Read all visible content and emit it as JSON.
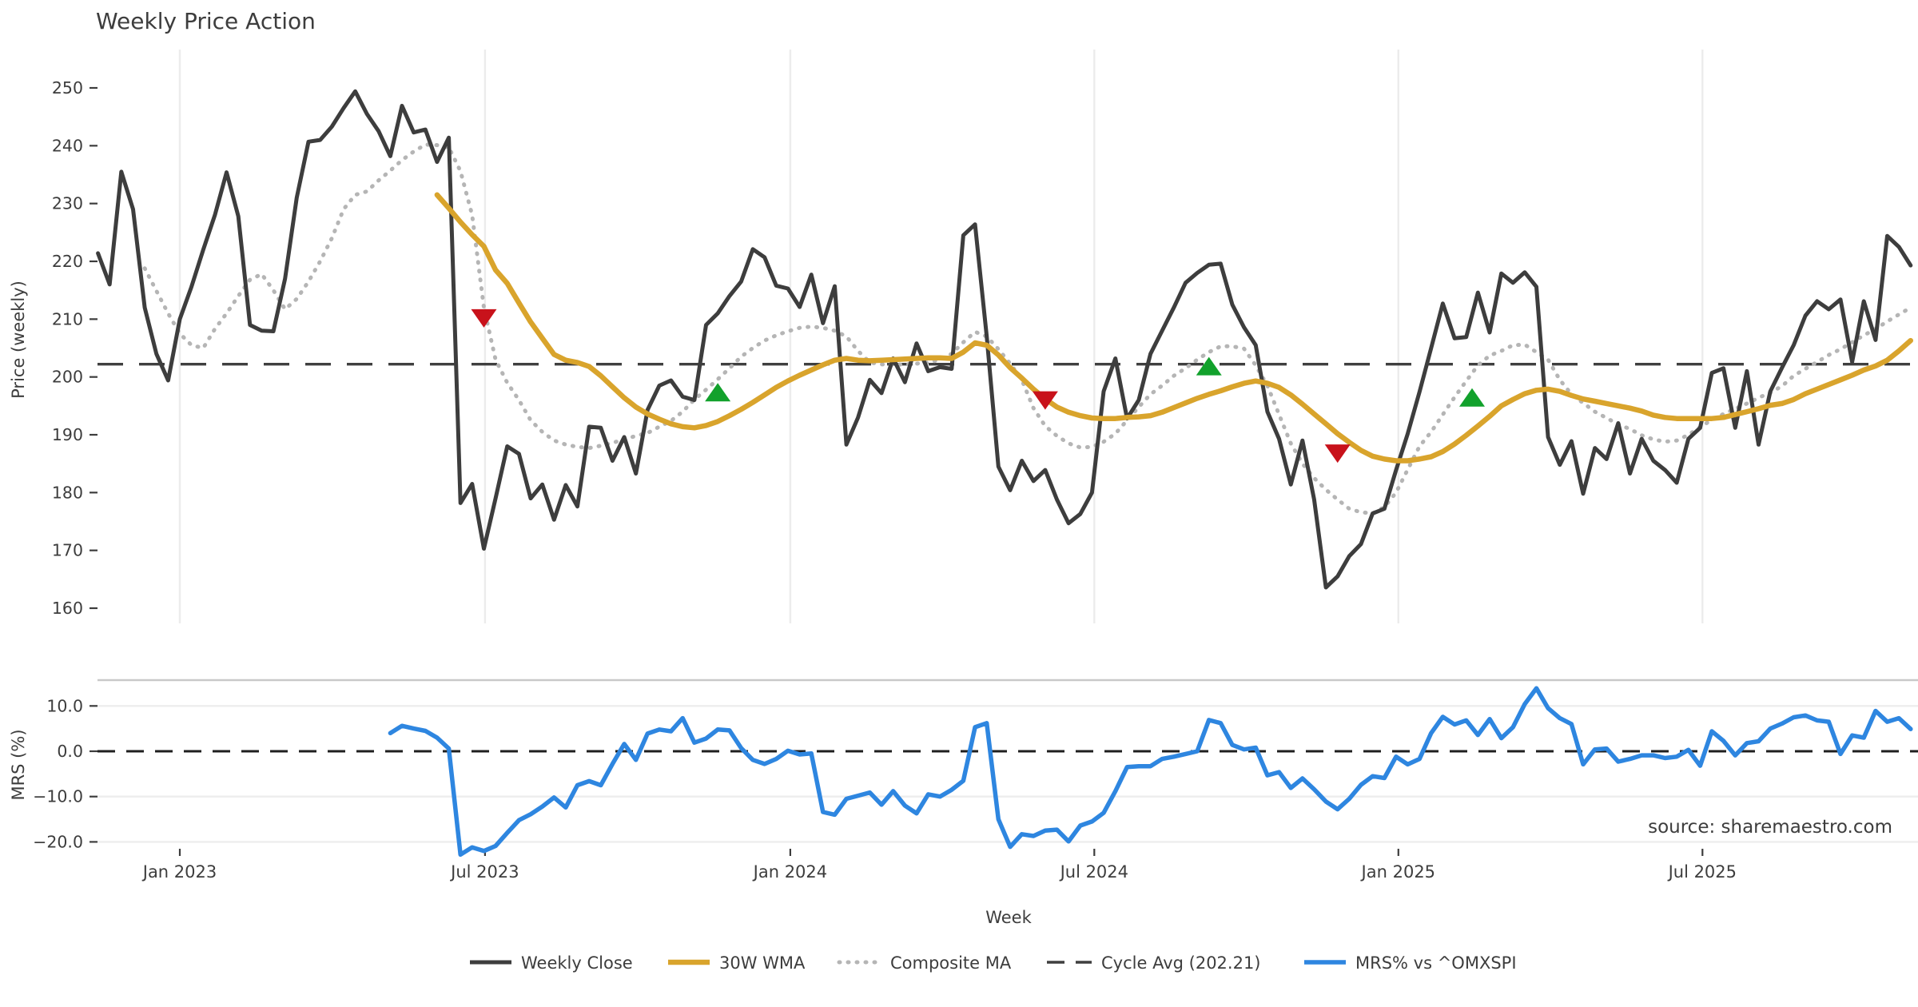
{
  "title": "Weekly Price Action",
  "source_note": "source: sharemaestro.com",
  "colors": {
    "weekly_close": "#3d3d3d",
    "wma": "#D9A42C",
    "composite": "#b5b5b5",
    "cycle_avg": "#3f3f3f",
    "mrs": "#2E86E0",
    "marker_down": "#C8121B",
    "marker_up": "#12A12C",
    "gridline": "#ececec",
    "panel_border": "#c9c9c9",
    "tick_text": "#3d3d3d",
    "source_text": "#a0a0a0"
  },
  "legend": {
    "items": [
      {
        "label": "Weekly Close",
        "style": "solid",
        "color": "#3d3d3d"
      },
      {
        "label": "30W WMA",
        "style": "solid",
        "color": "#D9A42C"
      },
      {
        "label": "Composite MA",
        "style": "dotted",
        "color": "#b5b5b5"
      },
      {
        "label": "Cycle Avg (202.21)",
        "style": "dashed",
        "color": "#3f3f3f"
      },
      {
        "label": "MRS% vs ^OMXSPI",
        "style": "solid",
        "color": "#2E86E0"
      }
    ]
  },
  "chart_data": [
    {
      "type": "line",
      "panel": "price",
      "ylabel": "Price (weekly)",
      "xlabel": "Week",
      "x_unit": "week index; 0 = Jan 2023 tick, one point per week",
      "ylim": [
        157,
        256.5
      ],
      "grid": "vertical-only",
      "cycle_avg_value": 202.21,
      "xticks": [
        {
          "pos": 0,
          "label": "Jan 2023"
        },
        {
          "pos": 26.1,
          "label": "Jul 2023"
        },
        {
          "pos": 52.2,
          "label": "Jan 2024"
        },
        {
          "pos": 78.2,
          "label": "Jul 2024"
        },
        {
          "pos": 104.2,
          "label": "Jan 2025"
        },
        {
          "pos": 130.2,
          "label": "Jul 2025"
        }
      ],
      "yticks": [
        {
          "value": 250,
          "label": "250"
        },
        {
          "value": 240,
          "label": "240"
        },
        {
          "value": 230,
          "label": "230"
        },
        {
          "value": 220,
          "label": "220"
        },
        {
          "value": 210,
          "label": "210"
        },
        {
          "value": 200,
          "label": "200"
        },
        {
          "value": 190,
          "label": "190"
        },
        {
          "value": 180,
          "label": "180"
        },
        {
          "value": 170,
          "label": "170"
        },
        {
          "value": 160,
          "label": "160"
        }
      ],
      "series": [
        {
          "name": "Weekly Close",
          "start_week": -7,
          "values": [
            221.4,
            216.0,
            235.5,
            229.0,
            212.0,
            204.0,
            199.4,
            210.0,
            215.6,
            222.0,
            228.0,
            235.4,
            227.8,
            209.0,
            208.0,
            207.9,
            217.0,
            231.0,
            240.7,
            241.0,
            243.3,
            246.5,
            249.4,
            245.5,
            242.5,
            238.2,
            246.9,
            242.3,
            242.8,
            237.2,
            241.4,
            178.2,
            181.5,
            170.3,
            179.0,
            188.0,
            186.7,
            179.0,
            181.4,
            175.3,
            181.3,
            177.6,
            191.4,
            191.2,
            185.5,
            189.6,
            183.3,
            194.3,
            198.5,
            199.4,
            196.6,
            196.0,
            209.0,
            211.0,
            214.0,
            216.5,
            222.1,
            220.7,
            215.8,
            215.3,
            212.1,
            217.7,
            209.3,
            215.7,
            188.3,
            193.0,
            199.5,
            197.2,
            203.2,
            199.1,
            205.8,
            201.0,
            201.7,
            201.4,
            224.5,
            226.4,
            207.0,
            184.5,
            180.4,
            185.5,
            182.0,
            183.9,
            178.8,
            174.7,
            176.3,
            180.0,
            197.5,
            203.2,
            192.8,
            196.0,
            204.0,
            208.0,
            212.0,
            216.3,
            218.0,
            219.4,
            219.6,
            212.5,
            208.6,
            205.5,
            194.0,
            189.3,
            181.4,
            189.0,
            178.8,
            163.6,
            165.5,
            169.0,
            171.1,
            176.4,
            177.2,
            183.9,
            190.2,
            197.4,
            205.0,
            212.7,
            206.7,
            206.9,
            214.6,
            207.7,
            217.9,
            216.3,
            218.1,
            215.6,
            189.6,
            184.8,
            188.9,
            179.8,
            187.7,
            185.8,
            192.0,
            183.3,
            189.3,
            185.5,
            183.9,
            181.7,
            189.3,
            191.2,
            200.7,
            201.5,
            191.2,
            201.0,
            188.3,
            197.5,
            201.6,
            205.5,
            210.6,
            213.1,
            211.7,
            213.4,
            202.6,
            213.1,
            206.4,
            224.4,
            222.5,
            219.3
          ]
        },
        {
          "name": "30W WMA",
          "start_week": 22,
          "values": [
            231.5,
            229.2,
            226.8,
            224.6,
            222.6,
            218.5,
            216.2,
            212.8,
            209.5,
            206.7,
            203.9,
            202.9,
            202.5,
            201.8,
            200.2,
            198.3,
            196.4,
            194.8,
            193.6,
            192.7,
            191.9,
            191.4,
            191.2,
            191.6,
            192.3,
            193.3,
            194.4,
            195.6,
            196.9,
            198.2,
            199.3,
            200.3,
            201.2,
            202.1,
            202.9,
            203.2,
            202.9,
            202.8,
            202.9,
            203.0,
            203.1,
            203.2,
            203.3,
            203.3,
            203.2,
            204.3,
            205.9,
            205.5,
            203.8,
            201.6,
            199.8,
            197.9,
            196.2,
            194.8,
            193.9,
            193.3,
            192.9,
            192.8,
            192.8,
            193.0,
            193.1,
            193.3,
            193.9,
            194.7,
            195.5,
            196.3,
            197.0,
            197.6,
            198.3,
            198.9,
            199.3,
            198.9,
            198.2,
            196.9,
            195.3,
            193.6,
            191.9,
            190.2,
            188.7,
            187.3,
            186.3,
            185.8,
            185.5,
            185.5,
            185.8,
            186.2,
            187.1,
            188.4,
            189.9,
            191.5,
            193.2,
            195.0,
            196.1,
            197.1,
            197.7,
            197.9,
            197.5,
            196.8,
            196.2,
            195.8,
            195.4,
            195.0,
            194.6,
            194.1,
            193.4,
            193.0,
            192.8,
            192.8,
            192.8,
            192.8,
            193.0,
            193.5,
            194.0,
            194.5,
            195.1,
            195.4,
            196.1,
            197.1,
            197.9,
            198.7,
            199.5,
            200.3,
            201.2,
            201.9,
            202.9,
            204.5,
            206.3
          ]
        },
        {
          "name": "Composite MA",
          "start_week": -3,
          "values": [
            218.8,
            214.9,
            211.0,
            207.5,
            205.5,
            205.0,
            208.3,
            211.0,
            214.0,
            216.8,
            217.8,
            215.0,
            211.7,
            213.5,
            216.5,
            220.0,
            224.0,
            229.0,
            231.5,
            232.1,
            234.0,
            235.7,
            237.5,
            239.0,
            240.2,
            240.1,
            239.7,
            235.6,
            228.0,
            212.0,
            203.0,
            199.0,
            196.0,
            192.5,
            190.5,
            189.0,
            188.3,
            187.9,
            187.7,
            188.1,
            188.6,
            189.2,
            189.8,
            190.3,
            191.4,
            192.4,
            194.0,
            196.1,
            197.8,
            199.6,
            201.5,
            203.5,
            205.0,
            206.3,
            207.2,
            207.9,
            208.5,
            208.7,
            208.5,
            208.0,
            207.0,
            204.5,
            202.5,
            202.2,
            202.1,
            202.2,
            202.3,
            202.5,
            203.0,
            204.0,
            206.0,
            207.8,
            207.0,
            204.8,
            202.3,
            199.5,
            194.6,
            191.5,
            189.8,
            188.5,
            187.8,
            187.9,
            188.8,
            190.2,
            192.5,
            194.8,
            197.0,
            198.5,
            200.2,
            201.5,
            203.0,
            204.3,
            205.3,
            205.3,
            204.9,
            202.0,
            198.5,
            193.5,
            188.5,
            185.0,
            182.5,
            180.5,
            178.8,
            177.2,
            176.6,
            176.4,
            177.5,
            180.0,
            184.0,
            188.0,
            190.5,
            193.5,
            196.5,
            199.3,
            202.0,
            203.7,
            204.5,
            205.5,
            205.6,
            204.3,
            203.0,
            199.5,
            197.0,
            195.5,
            194.0,
            192.9,
            191.8,
            191.0,
            189.9,
            189.2,
            188.8,
            189.0,
            190.0,
            191.3,
            192.6,
            193.6,
            194.5,
            195.4,
            196.4,
            197.3,
            198.4,
            200.2,
            201.4,
            202.6,
            203.8,
            204.8,
            206.0,
            207.2,
            208.3,
            209.6,
            210.8,
            212.0
          ]
        }
      ],
      "markers": [
        {
          "week": 26,
          "value": 210.2,
          "direction": "down"
        },
        {
          "week": 46,
          "value": 197.3,
          "direction": "up"
        },
        {
          "week": 74,
          "value": 196.0,
          "direction": "down"
        },
        {
          "week": 88,
          "value": 201.8,
          "direction": "up"
        },
        {
          "week": 99,
          "value": 186.8,
          "direction": "down"
        },
        {
          "week": 110.5,
          "value": 196.4,
          "direction": "up"
        }
      ]
    },
    {
      "type": "line",
      "panel": "mrs",
      "ylabel": "MRS (%)",
      "ylim": [
        -23.3,
        15.7
      ],
      "zero_line_dashed": true,
      "yticks": [
        {
          "value": 10,
          "label": "10.0"
        },
        {
          "value": 0,
          "label": "0.0"
        },
        {
          "value": -10,
          "label": "−10.0"
        },
        {
          "value": -20,
          "label": "−20.0"
        }
      ],
      "series": [
        {
          "name": "MRS% vs ^OMXSPI",
          "start_week": 18,
          "values": [
            4.0,
            5.6,
            5.0,
            4.5,
            3.0,
            0.6,
            -22.8,
            -21.2,
            -22.0,
            -20.9,
            -18.0,
            -15.2,
            -13.9,
            -12.2,
            -10.2,
            -12.4,
            -7.5,
            -6.6,
            -7.5,
            -2.8,
            1.6,
            -1.9,
            3.9,
            4.8,
            4.4,
            7.3,
            1.9,
            2.8,
            4.8,
            4.6,
            0.7,
            -1.9,
            -2.8,
            -1.7,
            0.1,
            -0.7,
            -0.5,
            -13.4,
            -14.0,
            -10.5,
            -9.8,
            -9.1,
            -11.8,
            -8.8,
            -12.0,
            -13.7,
            -9.5,
            -10.0,
            -8.5,
            -6.5,
            5.3,
            6.2,
            -15.0,
            -21.1,
            -18.3,
            -18.7,
            -17.5,
            -17.3,
            -19.9,
            -16.4,
            -15.5,
            -13.6,
            -8.8,
            -3.5,
            -3.3,
            -3.3,
            -1.7,
            -1.2,
            -0.6,
            0.0,
            6.9,
            6.2,
            1.4,
            0.4,
            0.8,
            -5.3,
            -4.6,
            -8.1,
            -6.0,
            -8.4,
            -11.1,
            -12.8,
            -10.5,
            -7.4,
            -5.5,
            -5.9,
            -1.2,
            -2.9,
            -1.7,
            4.0,
            7.6,
            5.9,
            6.8,
            3.6,
            7.1,
            2.9,
            5.3,
            10.4,
            13.9,
            9.5,
            7.3,
            6.0,
            -2.9,
            0.4,
            0.6,
            -2.3,
            -1.7,
            -0.9,
            -0.9,
            -1.5,
            -1.2,
            0.3,
            -3.2,
            4.4,
            2.3,
            -0.9,
            1.8,
            2.2,
            5.0,
            6.1,
            7.5,
            7.9,
            6.8,
            6.5,
            -0.6,
            3.5,
            3.0,
            8.9,
            6.5,
            7.3,
            4.9
          ]
        }
      ]
    }
  ]
}
